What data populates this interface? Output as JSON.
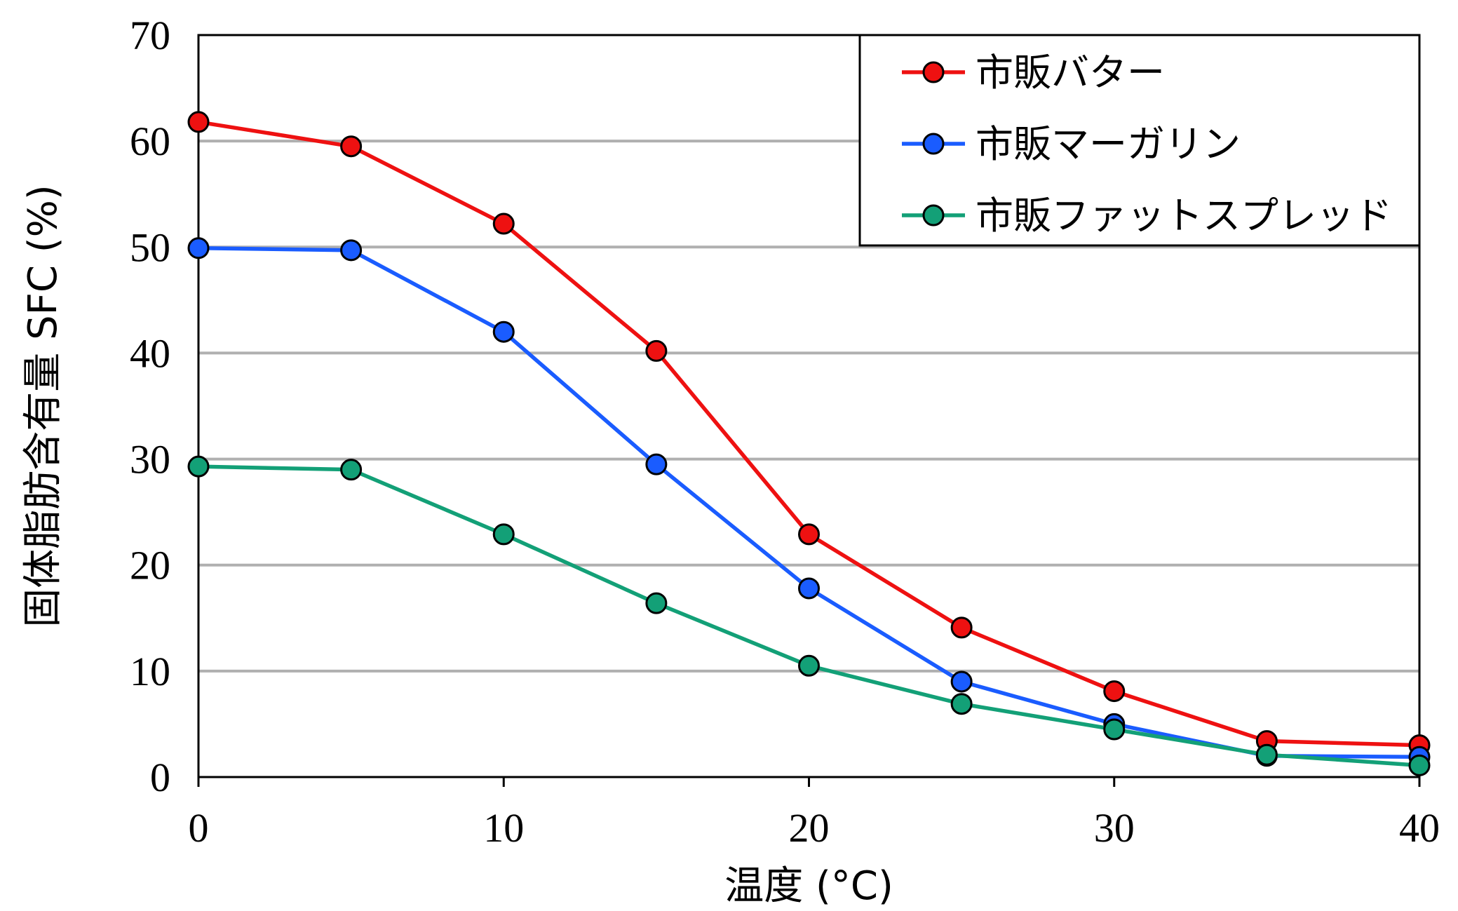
{
  "chart_data": {
    "type": "line",
    "title": "",
    "xlabel": "温度 (°C)",
    "ylabel": "固体脂肪含有量 SFC (%)",
    "xlim": [
      0,
      40
    ],
    "ylim": [
      0,
      70
    ],
    "xticks": [
      0,
      10,
      20,
      30,
      40
    ],
    "yticks": [
      0,
      10,
      20,
      30,
      40,
      50,
      60,
      70
    ],
    "grid": "horizontal",
    "legend": "top-right",
    "x": [
      0,
      5,
      10,
      15,
      20,
      25,
      30,
      35,
      40
    ],
    "series": [
      {
        "name": "市販バター",
        "color": "#ee1111",
        "values": [
          61.8,
          59.5,
          52.2,
          40.2,
          22.9,
          14.1,
          8.1,
          3.4,
          3.0
        ]
      },
      {
        "name": "市販マーガリン",
        "color": "#1a5cff",
        "values": [
          49.9,
          49.7,
          42.0,
          29.5,
          17.8,
          9.0,
          5.0,
          2.0,
          1.9
        ]
      },
      {
        "name": "市販ファットスプレッド",
        "color": "#13a077",
        "values": [
          29.3,
          29.0,
          22.9,
          16.4,
          10.5,
          6.9,
          4.5,
          2.1,
          1.1
        ]
      }
    ]
  }
}
